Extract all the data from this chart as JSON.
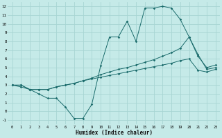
{
  "xlabel": "Humidex (Indice chaleur)",
  "background_color": "#c5eae8",
  "grid_color": "#a8d5d3",
  "line_color": "#1a6b6b",
  "xlim": [
    -0.5,
    23.5
  ],
  "ylim": [
    -1.5,
    12.5
  ],
  "xticks": [
    0,
    1,
    2,
    3,
    4,
    5,
    6,
    7,
    8,
    9,
    10,
    11,
    12,
    13,
    14,
    15,
    16,
    17,
    18,
    19,
    20,
    21,
    22,
    23
  ],
  "yticks": [
    -1,
    0,
    1,
    2,
    3,
    4,
    5,
    6,
    7,
    8,
    9,
    10,
    11,
    12
  ],
  "line1_x": [
    0,
    1,
    2,
    3,
    4,
    5,
    6,
    7,
    8,
    9,
    10,
    11,
    12,
    13,
    14,
    15,
    16,
    17,
    18,
    19,
    20,
    21,
    22,
    23
  ],
  "line1_y": [
    3.0,
    3.0,
    2.5,
    2.0,
    1.5,
    1.5,
    0.5,
    -0.8,
    -0.8,
    0.8,
    5.2,
    8.5,
    8.5,
    10.3,
    8.0,
    11.8,
    11.8,
    12.0,
    11.8,
    10.5,
    8.5,
    6.5,
    4.8,
    5.0
  ],
  "line2_x": [
    0,
    1,
    2,
    3,
    4,
    5,
    6,
    7,
    8,
    9,
    10,
    11,
    12,
    13,
    14,
    15,
    16,
    17,
    18,
    19,
    20,
    21,
    22,
    23
  ],
  "line2_y": [
    3.0,
    3.0,
    2.5,
    2.5,
    2.5,
    2.8,
    3.0,
    3.2,
    3.5,
    3.8,
    4.2,
    4.5,
    4.8,
    5.0,
    5.3,
    5.6,
    5.9,
    6.3,
    6.7,
    7.2,
    8.5,
    6.3,
    5.0,
    5.3
  ],
  "line3_x": [
    0,
    1,
    2,
    3,
    4,
    5,
    6,
    7,
    8,
    9,
    10,
    11,
    12,
    13,
    14,
    15,
    16,
    17,
    18,
    19,
    20,
    21,
    22,
    23
  ],
  "line3_y": [
    3.0,
    2.8,
    2.5,
    2.5,
    2.5,
    2.8,
    3.0,
    3.2,
    3.5,
    3.7,
    3.9,
    4.1,
    4.3,
    4.5,
    4.7,
    4.9,
    5.1,
    5.3,
    5.5,
    5.8,
    6.0,
    4.7,
    4.5,
    4.8
  ]
}
